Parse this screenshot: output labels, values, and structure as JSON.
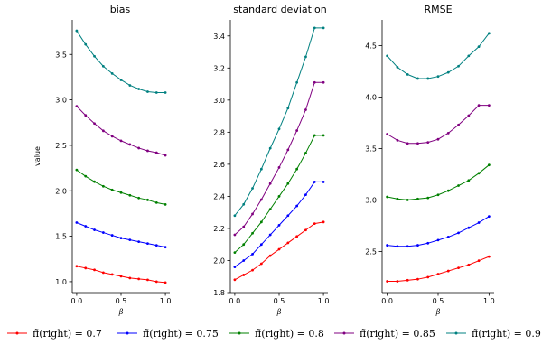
{
  "chart_data": [
    {
      "type": "line",
      "title": "bias",
      "xlabel": "β",
      "ylabel": "value",
      "x": [
        0.0,
        0.1,
        0.2,
        0.3,
        0.4,
        0.5,
        0.6,
        0.7,
        0.8,
        0.9,
        1.0
      ],
      "xlim": [
        -0.05,
        1.05
      ],
      "ylim": [
        0.88,
        3.88
      ],
      "xticks": [
        0.0,
        0.5,
        1.0
      ],
      "xtick_labels": [
        "0.0",
        "0.5",
        "1.0"
      ],
      "yticks": [
        1.0,
        1.5,
        2.0,
        2.5,
        3.0,
        3.5
      ],
      "ytick_labels": [
        "1.0",
        "1.5",
        "2.0",
        "2.5",
        "3.0",
        "3.5"
      ],
      "series": [
        {
          "name": "π̃(right) = 0.7",
          "color": "#ff0000",
          "values": [
            1.17,
            1.15,
            1.13,
            1.1,
            1.08,
            1.06,
            1.04,
            1.03,
            1.02,
            1.0,
            0.99
          ]
        },
        {
          "name": "π̃(right) = 0.75",
          "color": "#0000ff",
          "values": [
            1.65,
            1.61,
            1.57,
            1.54,
            1.51,
            1.48,
            1.46,
            1.44,
            1.42,
            1.4,
            1.38
          ]
        },
        {
          "name": "π̃(right) = 0.8",
          "color": "#008000",
          "values": [
            2.23,
            2.16,
            2.1,
            2.05,
            2.01,
            1.98,
            1.95,
            1.92,
            1.9,
            1.87,
            1.85
          ]
        },
        {
          "name": "π̃(right) = 0.85",
          "color": "#800080",
          "values": [
            2.93,
            2.83,
            2.74,
            2.66,
            2.6,
            2.55,
            2.51,
            2.47,
            2.44,
            2.42,
            2.39
          ]
        },
        {
          "name": "π̃(right) = 0.9",
          "color": "#008080",
          "values": [
            3.76,
            3.61,
            3.48,
            3.37,
            3.29,
            3.22,
            3.16,
            3.12,
            3.09,
            3.08,
            3.08
          ]
        }
      ]
    },
    {
      "type": "line",
      "title": "standard deviation",
      "xlabel": "β",
      "ylabel": "",
      "x": [
        0.0,
        0.1,
        0.2,
        0.3,
        0.4,
        0.5,
        0.6,
        0.7,
        0.8,
        0.9,
        1.0
      ],
      "xlim": [
        -0.05,
        1.05
      ],
      "ylim": [
        1.8,
        3.5
      ],
      "xticks": [
        0.0,
        0.5,
        1.0
      ],
      "xtick_labels": [
        "0.0",
        "0.5",
        "1.0"
      ],
      "yticks": [
        1.8,
        2.0,
        2.2,
        2.4,
        2.6,
        2.8,
        3.0,
        3.2,
        3.4
      ],
      "ytick_labels": [
        "1.8",
        "2.0",
        "2.2",
        "2.4",
        "2.6",
        "2.8",
        "3.0",
        "3.2",
        "3.4"
      ],
      "series": [
        {
          "name": "π̃(right) = 0.7",
          "color": "#ff0000",
          "values": [
            1.88,
            1.91,
            1.94,
            1.98,
            2.03,
            2.07,
            2.11,
            2.15,
            2.19,
            2.23,
            2.24
          ]
        },
        {
          "name": "π̃(right) = 0.75",
          "color": "#0000ff",
          "values": [
            1.96,
            2.0,
            2.04,
            2.1,
            2.16,
            2.22,
            2.28,
            2.34,
            2.41,
            2.49,
            2.49
          ]
        },
        {
          "name": "π̃(right) = 0.8",
          "color": "#008000",
          "values": [
            2.05,
            2.1,
            2.17,
            2.24,
            2.32,
            2.4,
            2.48,
            2.57,
            2.67,
            2.78,
            2.78
          ]
        },
        {
          "name": "π̃(right) = 0.85",
          "color": "#800080",
          "values": [
            2.16,
            2.21,
            2.29,
            2.38,
            2.48,
            2.58,
            2.69,
            2.81,
            2.94,
            3.11,
            3.11
          ]
        },
        {
          "name": "π̃(right) = 0.9",
          "color": "#008080",
          "values": [
            2.28,
            2.35,
            2.45,
            2.57,
            2.7,
            2.82,
            2.95,
            3.11,
            3.27,
            3.45,
            3.45
          ]
        }
      ]
    },
    {
      "type": "line",
      "title": "RMSE",
      "xlabel": "β",
      "ylabel": "",
      "x": [
        0.0,
        0.1,
        0.2,
        0.3,
        0.4,
        0.5,
        0.6,
        0.7,
        0.8,
        0.9,
        1.0
      ],
      "xlim": [
        -0.05,
        1.05
      ],
      "ylim": [
        2.1,
        4.75
      ],
      "xticks": [
        0.0,
        0.5,
        1.0
      ],
      "xtick_labels": [
        "0.0",
        "0.5",
        "1.0"
      ],
      "yticks": [
        2.5,
        3.0,
        3.5,
        4.0,
        4.5
      ],
      "ytick_labels": [
        "2.5",
        "3.0",
        "3.5",
        "4.0",
        "4.5"
      ],
      "series": [
        {
          "name": "π̃(right) = 0.7",
          "color": "#ff0000",
          "values": [
            2.21,
            2.21,
            2.22,
            2.23,
            2.25,
            2.28,
            2.31,
            2.34,
            2.37,
            2.41,
            2.45
          ]
        },
        {
          "name": "π̃(right) = 0.75",
          "color": "#0000ff",
          "values": [
            2.56,
            2.55,
            2.55,
            2.56,
            2.58,
            2.61,
            2.64,
            2.68,
            2.73,
            2.78,
            2.84
          ]
        },
        {
          "name": "π̃(right) = 0.8",
          "color": "#008000",
          "values": [
            3.03,
            3.01,
            3.0,
            3.01,
            3.02,
            3.05,
            3.09,
            3.14,
            3.19,
            3.26,
            3.34
          ]
        },
        {
          "name": "π̃(right) = 0.85",
          "color": "#800080",
          "values": [
            3.64,
            3.58,
            3.55,
            3.55,
            3.56,
            3.59,
            3.65,
            3.73,
            3.82,
            3.92,
            3.92
          ]
        },
        {
          "name": "π̃(right) = 0.9",
          "color": "#008080",
          "values": [
            4.4,
            4.29,
            4.22,
            4.18,
            4.18,
            4.2,
            4.24,
            4.3,
            4.4,
            4.49,
            4.62
          ]
        }
      ]
    }
  ],
  "legend": {
    "placement": "bottom",
    "entries": [
      {
        "label": "π̃(right) = 0.7",
        "color": "#ff0000"
      },
      {
        "label": "π̃(right) = 0.75",
        "color": "#0000ff"
      },
      {
        "label": "π̃(right) = 0.8",
        "color": "#008000"
      },
      {
        "label": "π̃(right) = 0.85",
        "color": "#800080"
      },
      {
        "label": "π̃(right) = 0.9",
        "color": "#008080"
      }
    ]
  }
}
